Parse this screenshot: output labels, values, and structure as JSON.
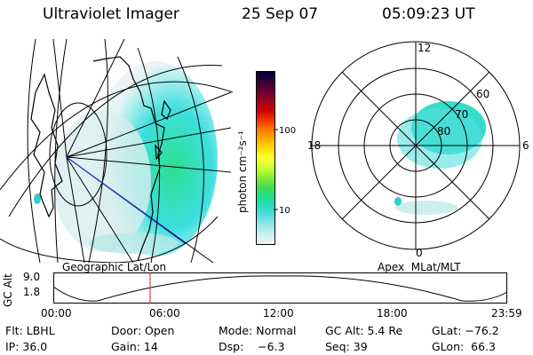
{
  "header": {
    "instrument": "Ultraviolet Imager",
    "date": "25 Sep 07",
    "time": "05:09:23 UT"
  },
  "colorbar": {
    "unit_label": "photon cm⁻²s⁻¹",
    "ticks": [
      "100",
      "10"
    ],
    "colors": [
      "#000033",
      "#330033",
      "#660033",
      "#990022",
      "#cc0000",
      "#ee3300",
      "#ff7700",
      "#ffaa00",
      "#ffdd00",
      "#ffff33",
      "#ccff33",
      "#88ee33",
      "#44dd55",
      "#22dd88",
      "#22ddbb",
      "#55dddd",
      "#99e6e6",
      "#ccf0f0",
      "#f0f0f0"
    ]
  },
  "geo_panel": {
    "label": "Geographic Lat/Lon"
  },
  "polar_panel": {
    "label": "Apex  MLat/MLT",
    "mlt_labels": {
      "top": "12",
      "left": "18",
      "right": "6",
      "bottom": "0"
    },
    "lat_labels": [
      "60",
      "70",
      "80"
    ]
  },
  "altitude_plot": {
    "ylabel": "GC Alt",
    "yticks": [
      "9.0",
      "1.8"
    ],
    "xticks": [
      "00:00",
      "06:00",
      "12:00",
      "18:00",
      "23:59"
    ],
    "current_time_marker": "05:09"
  },
  "info": {
    "filter": "Flt: LBHL",
    "door": "Door: Open",
    "mode": "Mode: Normal",
    "gc_alt": "GC Alt: 5.4 Re",
    "glat": "GLat: −76.2",
    "ip": "IP: 36.0",
    "gain": "Gain: 14",
    "dsp": "Dsp:    −6.3",
    "seq": "Seq: 39",
    "glon": "GLon:  66.3"
  }
}
